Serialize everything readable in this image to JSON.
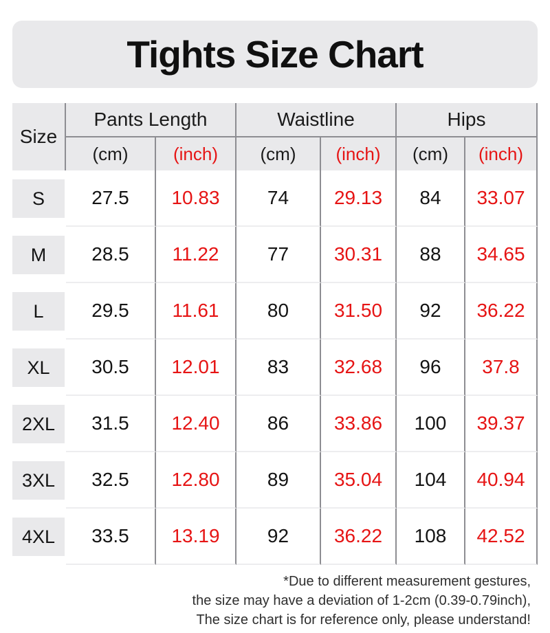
{
  "title": "Tights Size Chart",
  "table": {
    "corner_label": "Size",
    "groups": [
      {
        "label": "Pants Length",
        "units": [
          "(cm)",
          "(inch)"
        ]
      },
      {
        "label": "Waistline",
        "units": [
          "(cm)",
          "(inch)"
        ]
      },
      {
        "label": "Hips",
        "units": [
          "(cm)",
          "(inch)"
        ]
      }
    ],
    "rows": [
      {
        "size": "S",
        "cells": [
          "27.5",
          "10.83",
          "74",
          "29.13",
          "84",
          "33.07"
        ]
      },
      {
        "size": "M",
        "cells": [
          "28.5",
          "11.22",
          "77",
          "30.31",
          "88",
          "34.65"
        ]
      },
      {
        "size": "L",
        "cells": [
          "29.5",
          "11.61",
          "80",
          "31.50",
          "92",
          "36.22"
        ]
      },
      {
        "size": "XL",
        "cells": [
          "30.5",
          "12.01",
          "83",
          "32.68",
          "96",
          "37.8"
        ]
      },
      {
        "size": "2XL",
        "cells": [
          "31.5",
          "12.40",
          "86",
          "33.86",
          "100",
          "39.37"
        ]
      },
      {
        "size": "3XL",
        "cells": [
          "32.5",
          "12.80",
          "89",
          "35.04",
          "104",
          "40.94"
        ]
      },
      {
        "size": "4XL",
        "cells": [
          "33.5",
          "13.19",
          "92",
          "36.22",
          "108",
          "42.52"
        ]
      }
    ]
  },
  "footnote_lines": [
    "*Due to different measurement gestures,",
    "the size may have a deviation of 1-2cm (0.39-0.79inch),",
    "The size chart is for reference only, please understand!"
  ],
  "colors": {
    "accent_red": "#e61414",
    "header_bg": "#e9e9eb",
    "border_dark": "#8d8d92",
    "row_divider": "#ededef"
  },
  "chart_data": {
    "type": "table",
    "title": "Tights Size Chart",
    "columns": [
      "Size",
      "Pants Length (cm)",
      "Pants Length (inch)",
      "Waistline (cm)",
      "Waistline (inch)",
      "Hips (cm)",
      "Hips (inch)"
    ],
    "rows": [
      [
        "S",
        27.5,
        10.83,
        74,
        29.13,
        84,
        33.07
      ],
      [
        "M",
        28.5,
        11.22,
        77,
        30.31,
        88,
        34.65
      ],
      [
        "L",
        29.5,
        11.61,
        80,
        31.5,
        92,
        36.22
      ],
      [
        "XL",
        30.5,
        12.01,
        83,
        32.68,
        96,
        37.8
      ],
      [
        "2XL",
        31.5,
        12.4,
        86,
        33.86,
        100,
        39.37
      ],
      [
        "3XL",
        32.5,
        12.8,
        89,
        35.04,
        104,
        40.94
      ],
      [
        "4XL",
        33.5,
        13.19,
        92,
        36.22,
        108,
        42.52
      ]
    ],
    "notes": "inch columns rendered in red; cm columns in black"
  }
}
